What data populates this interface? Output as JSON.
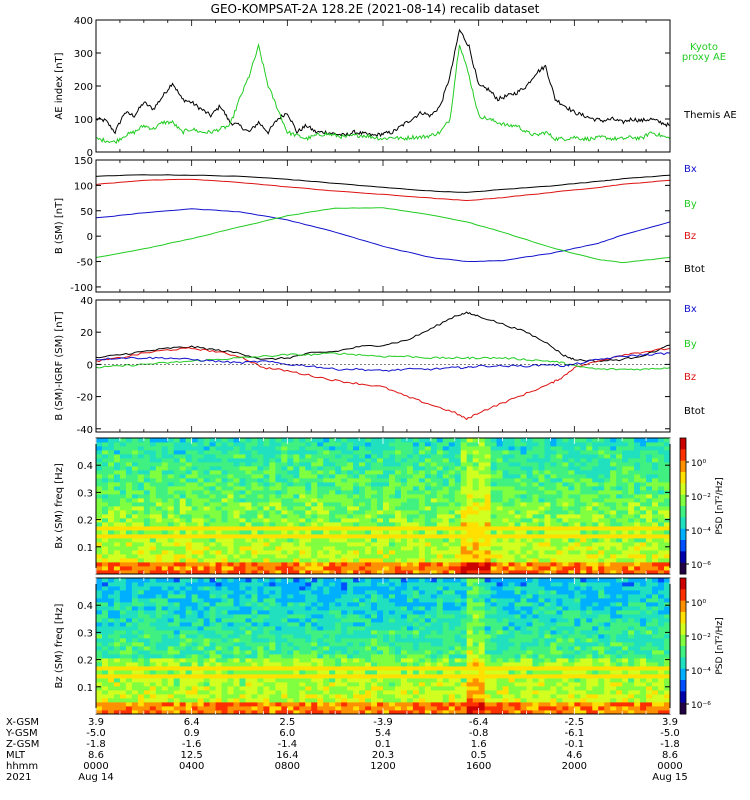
{
  "title": "GEO-KOMPSAT-2A 128.2E (2021-08-14) recalib dataset",
  "colors": {
    "black": "#000000",
    "green": "#22cc22",
    "red": "#dd1111",
    "blue": "#1111cc"
  },
  "chart_data": [
    {
      "type": "line",
      "panel": "ae",
      "ylabel": "AE index [nT]",
      "ylim": [
        0,
        400
      ],
      "yticks": [
        0,
        100,
        200,
        300,
        400
      ],
      "x_hours_range": [
        0,
        24
      ],
      "legend": [
        {
          "name": "Kyoto proxy AE",
          "color": "#22cc22"
        },
        {
          "name": "Themis AE",
          "color": "#000000"
        }
      ],
      "series": [
        {
          "name": "Themis AE",
          "color": "#000000",
          "x": [
            0,
            0.4,
            0.8,
            1.2,
            1.6,
            2,
            2.4,
            2.8,
            3.2,
            3.6,
            4,
            4.4,
            4.8,
            5.2,
            5.6,
            6,
            6.4,
            6.8,
            7.2,
            7.6,
            8,
            8.4,
            8.8,
            9.2,
            9.6,
            10,
            10.4,
            10.8,
            11.2,
            11.6,
            12,
            12.4,
            12.8,
            13.2,
            13.6,
            14,
            14.4,
            14.8,
            15.2,
            15.6,
            16,
            16.4,
            16.8,
            17.2,
            17.6,
            18,
            18.4,
            18.8,
            19.2,
            19.6,
            20,
            20.4,
            20.8,
            21.2,
            21.6,
            22,
            22.4,
            22.8,
            23.2,
            23.6,
            24
          ],
          "values": [
            100,
            95,
            60,
            120,
            110,
            150,
            130,
            170,
            210,
            160,
            150,
            130,
            110,
            140,
            90,
            80,
            60,
            90,
            60,
            100,
            120,
            60,
            80,
            60,
            60,
            55,
            50,
            60,
            55,
            50,
            55,
            60,
            80,
            100,
            120,
            110,
            140,
            230,
            370,
            320,
            200,
            190,
            160,
            170,
            180,
            200,
            240,
            260,
            160,
            140,
            120,
            110,
            100,
            95,
            100,
            90,
            100,
            95,
            100,
            90,
            80
          ]
        },
        {
          "name": "Kyoto proxy AE",
          "color": "#22cc22",
          "x": [
            0,
            0.4,
            0.8,
            1.2,
            1.6,
            2,
            2.4,
            2.8,
            3.2,
            3.6,
            4,
            4.4,
            4.8,
            5.2,
            5.6,
            6,
            6.4,
            6.8,
            7.2,
            7.6,
            8,
            8.4,
            8.8,
            9.2,
            9.6,
            10,
            10.4,
            10.8,
            11.2,
            11.6,
            12,
            12.4,
            12.8,
            13.2,
            13.6,
            14,
            14.4,
            14.8,
            15.2,
            15.6,
            16,
            16.4,
            16.8,
            17.2,
            17.6,
            18,
            18.4,
            18.8,
            19.2,
            19.6,
            20,
            20.4,
            20.8,
            21.2,
            21.6,
            22,
            22.4,
            22.8,
            23.2,
            23.6,
            24
          ],
          "values": [
            40,
            35,
            30,
            50,
            60,
            80,
            70,
            90,
            90,
            60,
            70,
            60,
            60,
            70,
            80,
            160,
            230,
            320,
            200,
            130,
            60,
            50,
            40,
            50,
            55,
            50,
            45,
            50,
            50,
            45,
            40,
            45,
            40,
            45,
            45,
            50,
            60,
            100,
            330,
            230,
            110,
            100,
            90,
            80,
            80,
            60,
            50,
            60,
            40,
            40,
            45,
            40,
            40,
            45,
            40,
            40,
            45,
            40,
            60,
            50,
            40
          ]
        }
      ]
    },
    {
      "type": "line",
      "panel": "bsm",
      "ylabel": "B (SM) [nT]",
      "ylim": [
        -110,
        150
      ],
      "yticks": [
        -100,
        -50,
        0,
        50,
        100,
        150
      ],
      "legend": [
        {
          "name": "Bx",
          "color": "#1111cc"
        },
        {
          "name": "By",
          "color": "#22cc22"
        },
        {
          "name": "Bz",
          "color": "#dd1111"
        },
        {
          "name": "Btot",
          "color": "#000000"
        }
      ],
      "series": [
        {
          "name": "Btot",
          "color": "#000000",
          "x": [
            0,
            2,
            4,
            6,
            8,
            10,
            12,
            14,
            15.5,
            17,
            19,
            21,
            22,
            24
          ],
          "values": [
            118,
            121,
            120,
            118,
            112,
            104,
            96,
            89,
            86,
            92,
            99,
            108,
            113,
            120
          ]
        },
        {
          "name": "Bz",
          "color": "#dd1111",
          "x": [
            0,
            2,
            4,
            6,
            8,
            10,
            12,
            14,
            15.5,
            17,
            19,
            21,
            22,
            24
          ],
          "values": [
            102,
            110,
            112,
            106,
            97,
            89,
            82,
            75,
            70,
            76,
            86,
            96,
            102,
            110
          ]
        },
        {
          "name": "Bx",
          "color": "#1111cc",
          "x": [
            0,
            2,
            4,
            6,
            8,
            10,
            12,
            14,
            15.5,
            17,
            19,
            21,
            22,
            24
          ],
          "values": [
            36,
            46,
            54,
            48,
            32,
            8,
            -20,
            -42,
            -50,
            -48,
            -34,
            -14,
            2,
            28
          ]
        },
        {
          "name": "By",
          "color": "#22cc22",
          "x": [
            0,
            2,
            4,
            6,
            8,
            10,
            12,
            14,
            15.5,
            17,
            19,
            21,
            22,
            24
          ],
          "values": [
            -42,
            -25,
            -5,
            18,
            40,
            55,
            56,
            42,
            28,
            8,
            -22,
            -46,
            -52,
            -42
          ]
        }
      ]
    },
    {
      "type": "line",
      "panel": "dbsm",
      "ylabel": "B (SM)-IGRF (SM) [nT]",
      "ylim": [
        -42,
        40
      ],
      "yticks": [
        -40,
        -20,
        0,
        20,
        40
      ],
      "legend": [
        {
          "name": "Bx",
          "color": "#1111cc"
        },
        {
          "name": "By",
          "color": "#22cc22"
        },
        {
          "name": "Bz",
          "color": "#dd1111"
        },
        {
          "name": "Btot",
          "color": "#000000"
        }
      ],
      "series": [
        {
          "name": "Btot",
          "color": "#000000",
          "x": [
            0,
            1,
            2,
            3,
            4,
            5,
            6,
            7,
            8,
            9,
            10,
            11,
            12,
            13,
            14,
            15,
            15.5,
            16,
            17,
            18,
            19,
            19.5,
            20,
            21,
            22,
            23,
            24
          ],
          "values": [
            4,
            6,
            8,
            10,
            11,
            9,
            7,
            3,
            4,
            7,
            8,
            11,
            12,
            15,
            22,
            30,
            32,
            30,
            25,
            20,
            12,
            6,
            3,
            2,
            3,
            6,
            12
          ]
        },
        {
          "name": "Bz",
          "color": "#dd1111",
          "x": [
            0,
            1,
            2,
            3,
            4,
            5,
            6,
            7,
            8,
            9,
            10,
            11,
            12,
            13,
            14,
            15,
            15.5,
            16,
            17,
            18,
            19,
            19.5,
            20,
            21,
            22,
            23,
            24
          ],
          "values": [
            2,
            4,
            7,
            9,
            10,
            8,
            5,
            -2,
            -4,
            -7,
            -10,
            -12,
            -14,
            -20,
            -25,
            -30,
            -34,
            -30,
            -24,
            -18,
            -12,
            -8,
            -2,
            2,
            6,
            8,
            10
          ]
        },
        {
          "name": "By",
          "color": "#22cc22",
          "x": [
            0,
            1,
            2,
            3,
            4,
            5,
            6,
            7,
            8,
            9,
            10,
            11,
            12,
            13,
            14,
            15,
            15.5,
            16,
            17,
            18,
            19,
            19.5,
            20,
            21,
            22,
            23,
            24
          ],
          "values": [
            -2,
            -1,
            0,
            1,
            2,
            3,
            4,
            5,
            6,
            6,
            7,
            6,
            5,
            5,
            4,
            4,
            4,
            4,
            4,
            3,
            2,
            1,
            -1,
            -3,
            -3,
            -3,
            -2
          ]
        },
        {
          "name": "Bx",
          "color": "#1111cc",
          "x": [
            0,
            1,
            2,
            3,
            4,
            5,
            6,
            7,
            8,
            9,
            10,
            11,
            12,
            13,
            14,
            15,
            15.5,
            16,
            17,
            18,
            19,
            19.5,
            20,
            21,
            22,
            23,
            24
          ],
          "values": [
            3,
            4,
            4,
            4,
            3,
            2,
            1,
            2,
            0,
            -1,
            -3,
            -3,
            -4,
            -3,
            -3,
            -2,
            -2,
            -1,
            -1,
            -1,
            0,
            -1,
            0,
            3,
            5,
            6,
            7
          ]
        }
      ]
    },
    {
      "type": "heatmap",
      "panel": "bx_spec",
      "ylabel": "Bx (SM) freq [Hz]",
      "ylim": [
        0,
        0.5
      ],
      "yticks": [
        0.1,
        0.2,
        0.3,
        0.4
      ],
      "colorbar": {
        "label": "PSD [nT²/Hz]",
        "ticks": [
          "10⁰",
          "10⁻²",
          "10⁻⁴",
          "10⁻⁶"
        ]
      },
      "features": {
        "harmonic_lines_hz": [
          0.14,
          0.165
        ],
        "enhanced_hours": [
          15.6,
          16.2
        ]
      }
    },
    {
      "type": "heatmap",
      "panel": "bz_spec",
      "ylabel": "Bz (SM) freq [Hz]",
      "ylim": [
        0,
        0.5
      ],
      "yticks": [
        0.1,
        0.2,
        0.3,
        0.4
      ],
      "colorbar": {
        "label": "PSD [nT²/Hz]",
        "ticks": [
          "10⁰",
          "10⁻²",
          "10⁻⁴",
          "10⁻⁶"
        ]
      },
      "features": {
        "harmonic_lines_hz": [
          0.14,
          0.165
        ],
        "enhanced_hours": [
          15.7,
          16.0
        ]
      }
    }
  ],
  "axis_table": {
    "row_labels": [
      "X-GSM",
      "Y-GSM",
      "Z-GSM",
      "MLT",
      "hhmm",
      "2021"
    ],
    "columns": [
      [
        "3.9",
        "-5.0",
        "-1.8",
        "8.6",
        "0000",
        "Aug 14"
      ],
      [
        "6.4",
        "0.9",
        "-1.6",
        "12.5",
        "0400",
        ""
      ],
      [
        "2.5",
        "6.0",
        "-1.4",
        "16.4",
        "0800",
        ""
      ],
      [
        "-3.9",
        "5.4",
        "0.1",
        "20.3",
        "1200",
        ""
      ],
      [
        "-6.4",
        "-0.8",
        "1.6",
        "0.5",
        "1600",
        ""
      ],
      [
        "-2.5",
        "-6.1",
        "-0.1",
        "4.6",
        "2000",
        ""
      ],
      [
        "3.9",
        "-5.0",
        "-1.8",
        "8.6",
        "0000",
        "Aug 15"
      ]
    ]
  }
}
